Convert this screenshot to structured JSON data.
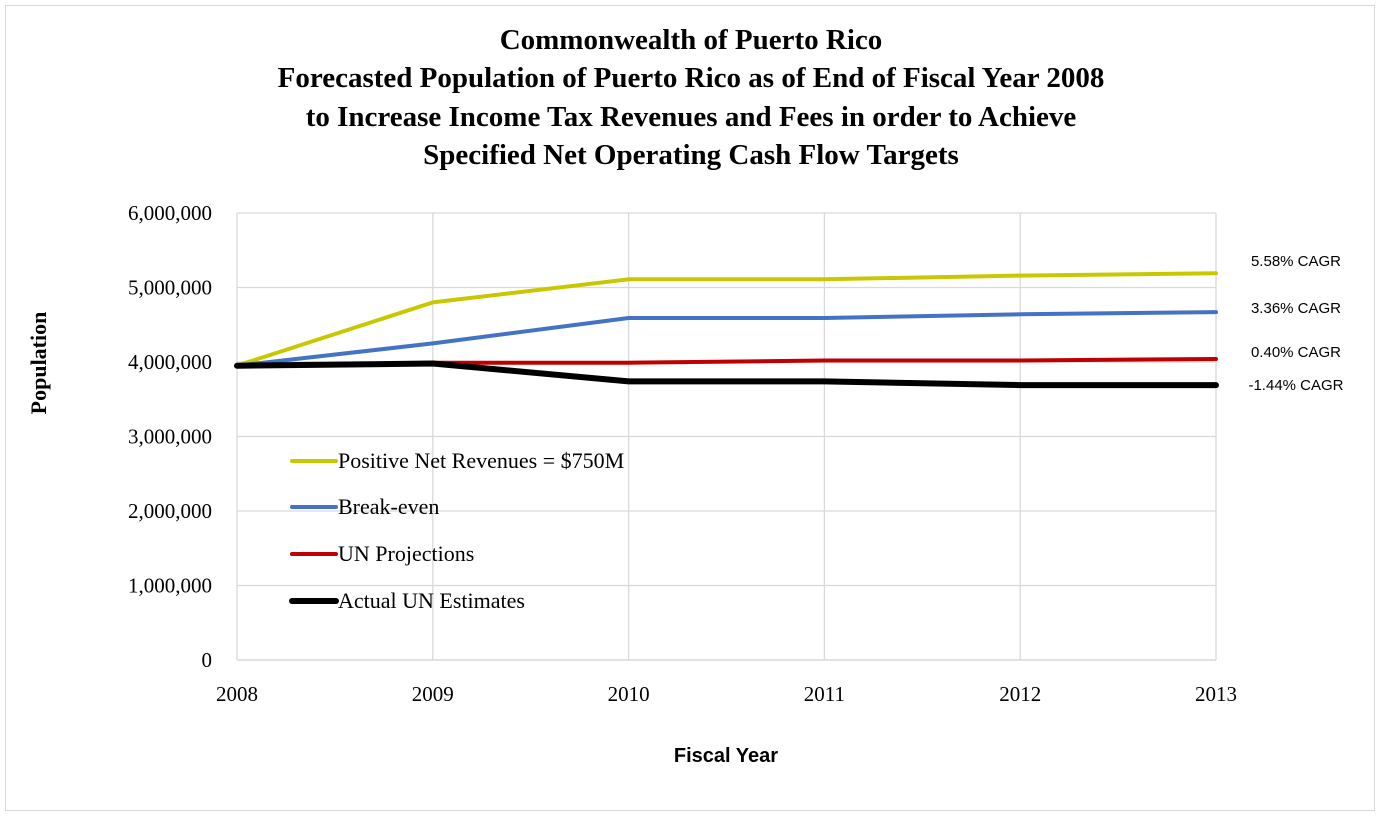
{
  "chart_data": {
    "type": "line",
    "title": [
      "Commonwealth of Puerto Rico",
      "Forecasted Population of Puerto Rico as of End of Fiscal Year 2008",
      "to Increase Income Tax Revenues and Fees in order to Achieve",
      "Specified Net Operating Cash Flow Targets"
    ],
    "xlabel": "Fiscal Year",
    "ylabel": "Population",
    "x": [
      2008,
      2009,
      2010,
      2011,
      2012,
      2013
    ],
    "xlim": [
      2008,
      2013
    ],
    "ylim": [
      0,
      6000000
    ],
    "yticks": [
      0,
      1000000,
      2000000,
      3000000,
      4000000,
      5000000,
      6000000
    ],
    "grid": true,
    "legend_position": "left-center",
    "series": [
      {
        "name": "Positive Net Revenues = $750M",
        "color": "#c9c800",
        "end_label": "5.58% CAGR",
        "values": [
          3950000,
          4800000,
          5110000,
          5110000,
          5160000,
          5190000
        ]
      },
      {
        "name": "Break-even",
        "color": "#4472c4",
        "end_label": "3.36% CAGR",
        "values": [
          3950000,
          4250000,
          4590000,
          4590000,
          4640000,
          4670000
        ]
      },
      {
        "name": "UN Projections",
        "color": "#c00000",
        "end_label": "0.40% CAGR",
        "values": [
          3950000,
          3990000,
          3990000,
          4020000,
          4020000,
          4040000
        ]
      },
      {
        "name": "Actual UN Estimates",
        "color": "#000000",
        "end_label": "-1.44% CAGR",
        "values": [
          3950000,
          3980000,
          3740000,
          3740000,
          3690000,
          3690000
        ]
      }
    ]
  }
}
